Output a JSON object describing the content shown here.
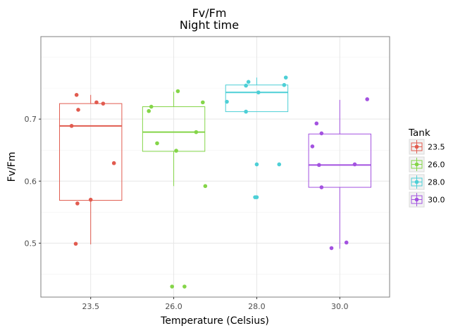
{
  "chart_data": {
    "type": "boxplot",
    "title": "Fv/Fm",
    "subtitle": "Night time",
    "xlabel": "Temperature (Celsius)",
    "ylabel": "Fv/Fm",
    "categories": [
      "23.5",
      "26.0",
      "28.0",
      "30.0"
    ],
    "ylim": [
      0.413,
      0.833
    ],
    "yticks": [
      0.5,
      0.6,
      0.7
    ],
    "ytick_labels": [
      "0.5",
      "0.6",
      "0.7"
    ],
    "grid": true,
    "legend": {
      "title": "Tank",
      "position": "right",
      "entries": [
        "23.5",
        "26.0",
        "28.0",
        "30.0"
      ]
    },
    "series": [
      {
        "category": "23.5",
        "color": "#e15b4f",
        "box": {
          "lower_whisker": 0.498,
          "q1": 0.569,
          "median": 0.689,
          "q3": 0.725,
          "upper_whisker": 0.739
        },
        "points": [
          [
            -0.17,
            0.739
          ],
          [
            -0.15,
            0.715
          ],
          [
            0.07,
            0.727
          ],
          [
            0.15,
            0.725
          ],
          [
            -0.23,
            0.689
          ],
          [
            0.28,
            0.629
          ],
          [
            0.0,
            0.57
          ],
          [
            -0.16,
            0.564
          ],
          [
            -0.18,
            0.499
          ]
        ]
      },
      {
        "category": "26.0",
        "color": "#84d548",
        "box": {
          "lower_whisker": 0.592,
          "q1": 0.648,
          "median": 0.679,
          "q3": 0.72,
          "upper_whisker": 0.744
        },
        "points": [
          [
            0.05,
            0.745
          ],
          [
            0.35,
            0.727
          ],
          [
            -0.27,
            0.72
          ],
          [
            -0.3,
            0.713
          ],
          [
            0.27,
            0.679
          ],
          [
            -0.2,
            0.661
          ],
          [
            0.03,
            0.649
          ],
          [
            0.38,
            0.592
          ],
          [
            -0.02,
            0.43
          ],
          [
            0.13,
            0.43
          ]
        ]
      },
      {
        "category": "28.0",
        "color": "#4dcfd6",
        "box": {
          "lower_whisker": 0.712,
          "q1": 0.712,
          "median": 0.743,
          "q3": 0.755,
          "upper_whisker": 0.767
        },
        "points": [
          [
            0.35,
            0.767
          ],
          [
            -0.1,
            0.76
          ],
          [
            -0.13,
            0.754
          ],
          [
            0.33,
            0.755
          ],
          [
            0.02,
            0.743
          ],
          [
            -0.36,
            0.728
          ],
          [
            -0.13,
            0.712
          ],
          [
            0.0,
            0.627
          ],
          [
            0.27,
            0.627
          ],
          [
            -0.02,
            0.574
          ],
          [
            0.0,
            0.574
          ]
        ]
      },
      {
        "category": "30.0",
        "color": "#a352e0",
        "box": {
          "lower_whisker": 0.491,
          "q1": 0.59,
          "median": 0.626,
          "q3": 0.676,
          "upper_whisker": 0.731
        },
        "points": [
          [
            0.33,
            0.732
          ],
          [
            -0.28,
            0.693
          ],
          [
            -0.22,
            0.677
          ],
          [
            -0.33,
            0.656
          ],
          [
            -0.25,
            0.626
          ],
          [
            0.18,
            0.627
          ],
          [
            -0.22,
            0.59
          ],
          [
            0.08,
            0.501
          ],
          [
            -0.1,
            0.492
          ]
        ]
      }
    ]
  }
}
